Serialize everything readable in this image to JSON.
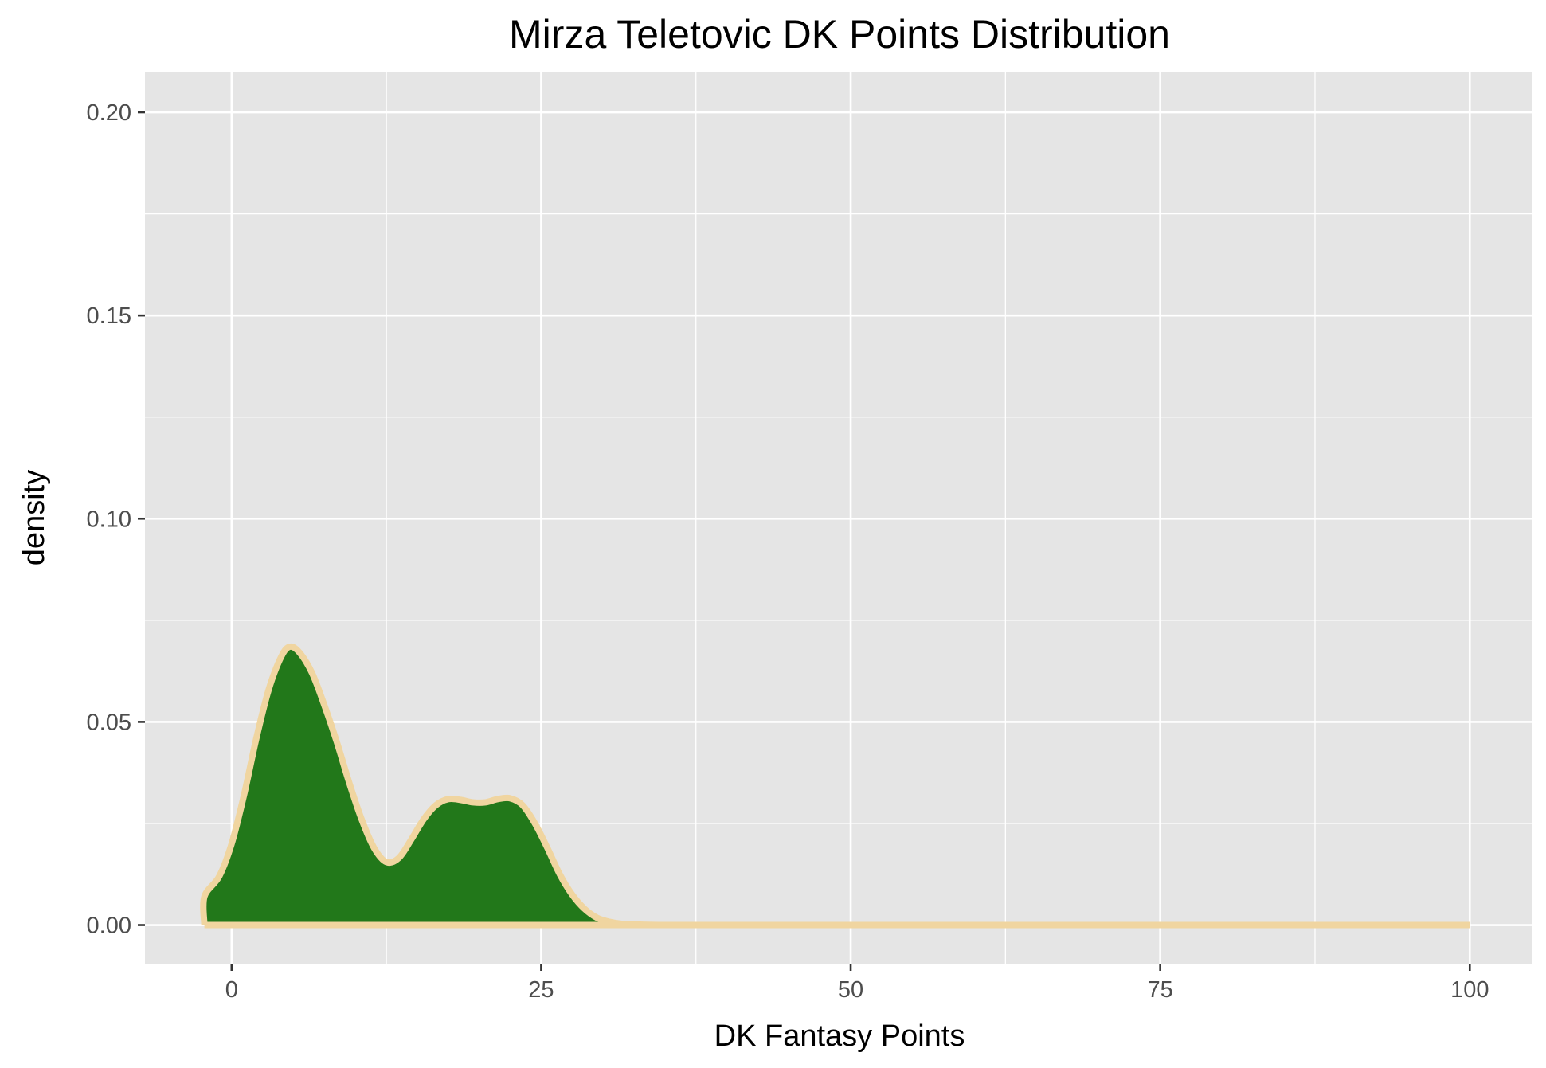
{
  "chart_data": {
    "type": "area",
    "title": "Mirza Teletovic DK Points Distribution",
    "xlabel": "DK Fantasy Points",
    "ylabel": "density",
    "xlim": [
      -7,
      105
    ],
    "ylim": [
      -0.0095,
      0.21
    ],
    "x_ticks": [
      0,
      25,
      50,
      75,
      100
    ],
    "x_tick_labels": [
      "0",
      "25",
      "50",
      "75",
      "100"
    ],
    "y_ticks": [
      0,
      0.05,
      0.1,
      0.15,
      0.2
    ],
    "y_tick_labels": [
      "0.00",
      "0.05",
      "0.10",
      "0.15",
      "0.20"
    ],
    "grid": true,
    "legend": "none",
    "colors": {
      "panel_background": "#e5e5e5",
      "grid": "#ffffff",
      "fill": "#22781a",
      "outline": "#f0d5a0",
      "axis_tick": "#333333"
    },
    "series": [
      {
        "x": [
          -2.2,
          -2.2,
          -1,
          0,
          1,
          2,
          3,
          4,
          4.7,
          5.5,
          6.5,
          7.5,
          8.5,
          9.5,
          10.5,
          11.5,
          12.5,
          13.5,
          14.5,
          15.5,
          16.5,
          17.5,
          18.5,
          19.5,
          20.5,
          21.5,
          22.5,
          23.5,
          24.5,
          25.5,
          26.5,
          27.5,
          28.5,
          29.5,
          30.5,
          31.5,
          33,
          35,
          40,
          50,
          60,
          70,
          80,
          90,
          100
        ],
        "y": [
          0,
          0.007,
          0.012,
          0.02,
          0.032,
          0.046,
          0.058,
          0.066,
          0.0685,
          0.067,
          0.062,
          0.054,
          0.045,
          0.035,
          0.026,
          0.019,
          0.0155,
          0.0165,
          0.021,
          0.026,
          0.0295,
          0.031,
          0.0308,
          0.0302,
          0.0302,
          0.031,
          0.0312,
          0.0295,
          0.025,
          0.019,
          0.0125,
          0.0075,
          0.004,
          0.0018,
          0.0008,
          0.0003,
          0.0001,
          0,
          0,
          0,
          0,
          0,
          0,
          0,
          0
        ]
      }
    ]
  }
}
